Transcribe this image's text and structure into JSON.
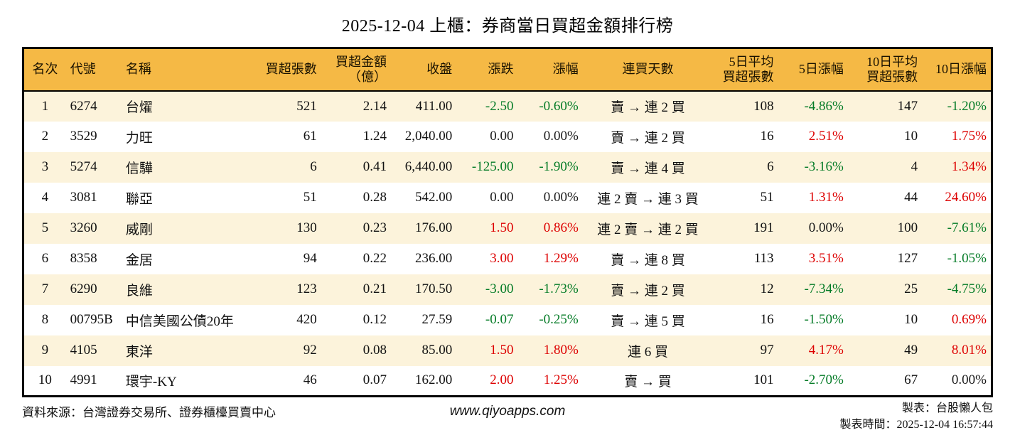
{
  "title": "2025-12-04 上櫃：券商當日買超金額排行榜",
  "colors": {
    "header_bg": "#F5B945",
    "row_alt_bg": "#FCF3DB",
    "up_red": "#DD0000",
    "down_green": "#047B26",
    "border": "#000000"
  },
  "chart_data": {
    "type": "table",
    "title": "2025-12-04 上櫃：券商當日買超金額排行榜",
    "columns": [
      {
        "key": "rank",
        "label": "名次",
        "align": "center"
      },
      {
        "key": "code",
        "label": "代號",
        "align": "left"
      },
      {
        "key": "name",
        "label": "名稱",
        "align": "left"
      },
      {
        "key": "shares",
        "label": "買超張數",
        "align": "right"
      },
      {
        "key": "amount",
        "label": "買超金額\n（億）",
        "align": "right"
      },
      {
        "key": "close",
        "label": "收盤",
        "align": "right"
      },
      {
        "key": "change",
        "label": "漲跌",
        "align": "right"
      },
      {
        "key": "change_pct",
        "label": "漲幅",
        "align": "right"
      },
      {
        "key": "streak",
        "label": "連買天數",
        "align": "center"
      },
      {
        "key": "avg5",
        "label": "5日平均\n買超張數",
        "align": "right"
      },
      {
        "key": "pct5",
        "label": "5日漲幅",
        "align": "right"
      },
      {
        "key": "avg10",
        "label": "10日平均\n買超張數",
        "align": "right"
      },
      {
        "key": "pct10",
        "label": "10日漲幅",
        "align": "right"
      }
    ],
    "rows": [
      {
        "rank": "1",
        "code": "6274",
        "name": "台燿",
        "shares": "521",
        "amount": "2.14",
        "close": "411.00",
        "change": "-2.50",
        "change_trend": "down",
        "change_pct": "-0.60%",
        "streak": "賣 → 連 2 買",
        "avg5": "108",
        "pct5": "-4.86%",
        "pct5_trend": "down",
        "avg10": "147",
        "pct10": "-1.20%",
        "pct10_trend": "down"
      },
      {
        "rank": "2",
        "code": "3529",
        "name": "力旺",
        "shares": "61",
        "amount": "1.24",
        "close": "2,040.00",
        "change": "0.00",
        "change_trend": "flat",
        "change_pct": "0.00%",
        "streak": "賣 → 連 2 買",
        "avg5": "16",
        "pct5": "2.51%",
        "pct5_trend": "up",
        "avg10": "10",
        "pct10": "1.75%",
        "pct10_trend": "up"
      },
      {
        "rank": "3",
        "code": "5274",
        "name": "信驊",
        "shares": "6",
        "amount": "0.41",
        "close": "6,440.00",
        "change": "-125.00",
        "change_trend": "down",
        "change_pct": "-1.90%",
        "streak": "賣 → 連 4 買",
        "avg5": "6",
        "pct5": "-3.16%",
        "pct5_trend": "down",
        "avg10": "4",
        "pct10": "1.34%",
        "pct10_trend": "up"
      },
      {
        "rank": "4",
        "code": "3081",
        "name": "聯亞",
        "shares": "51",
        "amount": "0.28",
        "close": "542.00",
        "change": "0.00",
        "change_trend": "flat",
        "change_pct": "0.00%",
        "streak": "連 2 賣 → 連 3 買",
        "avg5": "51",
        "pct5": "1.31%",
        "pct5_trend": "up",
        "avg10": "44",
        "pct10": "24.60%",
        "pct10_trend": "up"
      },
      {
        "rank": "5",
        "code": "3260",
        "name": "威剛",
        "shares": "130",
        "amount": "0.23",
        "close": "176.00",
        "change": "1.50",
        "change_trend": "up",
        "change_pct": "0.86%",
        "streak": "連 2 賣 → 連 2 買",
        "avg5": "191",
        "pct5": "0.00%",
        "pct5_trend": "flat",
        "avg10": "100",
        "pct10": "-7.61%",
        "pct10_trend": "down"
      },
      {
        "rank": "6",
        "code": "8358",
        "name": "金居",
        "shares": "94",
        "amount": "0.22",
        "close": "236.00",
        "change": "3.00",
        "change_trend": "up",
        "change_pct": "1.29%",
        "streak": "賣 → 連 8 買",
        "avg5": "113",
        "pct5": "3.51%",
        "pct5_trend": "up",
        "avg10": "127",
        "pct10": "-1.05%",
        "pct10_trend": "down"
      },
      {
        "rank": "7",
        "code": "6290",
        "name": "良維",
        "shares": "123",
        "amount": "0.21",
        "close": "170.50",
        "change": "-3.00",
        "change_trend": "down",
        "change_pct": "-1.73%",
        "streak": "賣 → 連 2 買",
        "avg5": "12",
        "pct5": "-7.34%",
        "pct5_trend": "down",
        "avg10": "25",
        "pct10": "-4.75%",
        "pct10_trend": "down"
      },
      {
        "rank": "8",
        "code": "00795B",
        "name": "中信美國公債20年",
        "shares": "420",
        "amount": "0.12",
        "close": "27.59",
        "change": "-0.07",
        "change_trend": "down",
        "change_pct": "-0.25%",
        "streak": "賣 → 連 5 買",
        "avg5": "16",
        "pct5": "-1.50%",
        "pct5_trend": "down",
        "avg10": "10",
        "pct10": "0.69%",
        "pct10_trend": "up"
      },
      {
        "rank": "9",
        "code": "4105",
        "name": "東洋",
        "shares": "92",
        "amount": "0.08",
        "close": "85.00",
        "change": "1.50",
        "change_trend": "up",
        "change_pct": "1.80%",
        "streak": "連 6 買",
        "avg5": "97",
        "pct5": "4.17%",
        "pct5_trend": "up",
        "avg10": "49",
        "pct10": "8.01%",
        "pct10_trend": "up"
      },
      {
        "rank": "10",
        "code": "4991",
        "name": "環宇-KY",
        "shares": "46",
        "amount": "0.07",
        "close": "162.00",
        "change": "2.00",
        "change_trend": "up",
        "change_pct": "1.25%",
        "streak": "賣 → 買",
        "avg5": "101",
        "pct5": "-2.70%",
        "pct5_trend": "down",
        "avg10": "67",
        "pct10": "0.00%",
        "pct10_trend": "flat"
      }
    ]
  },
  "footer": {
    "source": "資料來源：台灣證券交易所、證券櫃檯買賣中心",
    "website": "www.qiyoapps.com",
    "creator": "製表：台股懶人包",
    "generated": "製表時間：2025-12-04 16:57:44"
  }
}
